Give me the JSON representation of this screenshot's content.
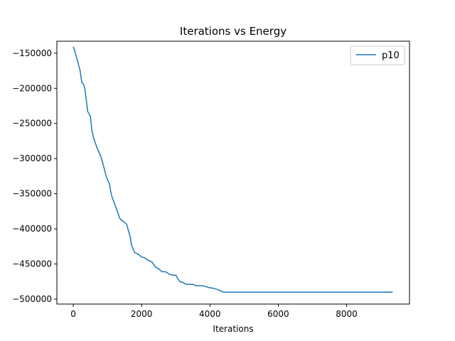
{
  "chart_data": {
    "type": "line",
    "title": "Iterations vs Energy",
    "xlabel": "Iterations",
    "ylabel": "",
    "xlim": [
      -480,
      9840
    ],
    "ylim": [
      -507000,
      -133000
    ],
    "xticks": [
      0,
      2000,
      4000,
      6000,
      8000
    ],
    "yticks": [
      -150000,
      -200000,
      -250000,
      -300000,
      -350000,
      -400000,
      -450000,
      -500000
    ],
    "xtick_labels": [
      "0",
      "2000",
      "4000",
      "6000",
      "8000"
    ],
    "ytick_labels": [
      "−150000",
      "−200000",
      "−250000",
      "−300000",
      "−350000",
      "−400000",
      "−450000",
      "−500000"
    ],
    "grid": false,
    "legend_position": "top-right",
    "series": [
      {
        "name": "p10",
        "color": "#1f77b4",
        "x": [
          0,
          40,
          90,
          150,
          200,
          250,
          300,
          340,
          380,
          420,
          460,
          500,
          540,
          580,
          640,
          700,
          760,
          800,
          860,
          900,
          950,
          1000,
          1060,
          1100,
          1150,
          1200,
          1260,
          1300,
          1360,
          1420,
          1480,
          1560,
          1640,
          1660,
          1700,
          1760,
          1800,
          1860,
          1900,
          2000,
          2080,
          2200,
          2300,
          2400,
          2500,
          2600,
          2700,
          2800,
          2900,
          3000,
          3100,
          3150,
          3200,
          3300,
          3500,
          3600,
          3800,
          4000,
          4050,
          4200,
          4300,
          4400,
          4500,
          6000,
          8000,
          9350
        ],
        "y": [
          -141000,
          -146000,
          -155000,
          -166000,
          -175000,
          -192000,
          -194000,
          -201000,
          -216000,
          -233000,
          -236000,
          -240000,
          -258000,
          -268000,
          -277000,
          -285000,
          -292000,
          -296000,
          -306000,
          -313000,
          -323000,
          -330000,
          -336000,
          -348000,
          -357000,
          -363000,
          -371000,
          -377000,
          -385000,
          -388000,
          -390000,
          -393000,
          -407000,
          -410000,
          -422000,
          -430000,
          -434000,
          -435000,
          -436000,
          -440000,
          -441000,
          -445000,
          -447000,
          -454000,
          -457000,
          -461000,
          -461000,
          -464000,
          -466000,
          -466000,
          -474000,
          -476000,
          -476000,
          -479000,
          -479000,
          -481000,
          -481000,
          -484000,
          -484000,
          -486000,
          -488000,
          -490000,
          -490000,
          -490000,
          -490000,
          -490000
        ]
      }
    ]
  }
}
